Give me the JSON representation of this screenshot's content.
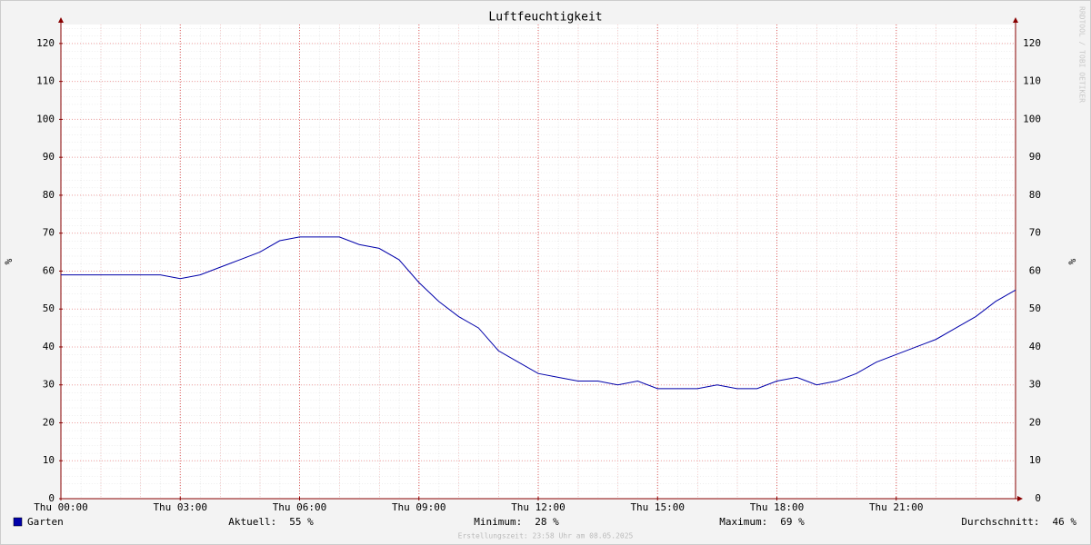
{
  "chart_data": {
    "type": "line",
    "title": "Luftfeuchtigkeit",
    "y_label": "%",
    "x": [
      0,
      0.5,
      1,
      1.5,
      2,
      2.5,
      3,
      3.5,
      4,
      4.5,
      5,
      5.5,
      6,
      6.5,
      7,
      7.5,
      8,
      8.5,
      9,
      9.5,
      10,
      10.5,
      11,
      11.5,
      12,
      12.5,
      13,
      13.5,
      14,
      14.5,
      15,
      15.5,
      16,
      16.5,
      17,
      17.5,
      18,
      18.5,
      19,
      19.5,
      20,
      20.5,
      21,
      21.5,
      22,
      22.5,
      23,
      23.5,
      24
    ],
    "series": [
      {
        "name": "Garten",
        "color": "#0000aa",
        "values": [
          59,
          59,
          59,
          59,
          59,
          59,
          58,
          59,
          61,
          63,
          65,
          68,
          69,
          69,
          69,
          67,
          66,
          63,
          57,
          52,
          48,
          45,
          39,
          36,
          33,
          32,
          31,
          31,
          30,
          31,
          29,
          29,
          29,
          30,
          29,
          29,
          31,
          32,
          30,
          31,
          33,
          36,
          38,
          40,
          42,
          45,
          48,
          52,
          55
        ]
      }
    ],
    "xlim": [
      0,
      24
    ],
    "xticks": [
      {
        "value": 0,
        "label": "Thu 00:00"
      },
      {
        "value": 3,
        "label": "Thu 03:00"
      },
      {
        "value": 6,
        "label": "Thu 06:00"
      },
      {
        "value": 9,
        "label": "Thu 09:00"
      },
      {
        "value": 12,
        "label": "Thu 12:00"
      },
      {
        "value": 15,
        "label": "Thu 15:00"
      },
      {
        "value": 18,
        "label": "Thu 18:00"
      },
      {
        "value": 21,
        "label": "Thu 21:00"
      }
    ],
    "ylim": [
      0,
      125
    ],
    "yticks": [
      0,
      10,
      20,
      30,
      40,
      50,
      60,
      70,
      80,
      90,
      100,
      110,
      120
    ],
    "grid": true,
    "stats": [
      {
        "label": "Aktuell:",
        "value": "55 %"
      },
      {
        "label": "Minimum:",
        "value": "28 %"
      },
      {
        "label": "Maximum:",
        "value": "69 %"
      },
      {
        "label": "Durchschnitt:",
        "value": "46 %"
      }
    ],
    "footer": "Erstellungszeit: 23:58 Uhr am 08.05.2025",
    "watermark": "RRDTOOL / TOBI OETIKER"
  }
}
